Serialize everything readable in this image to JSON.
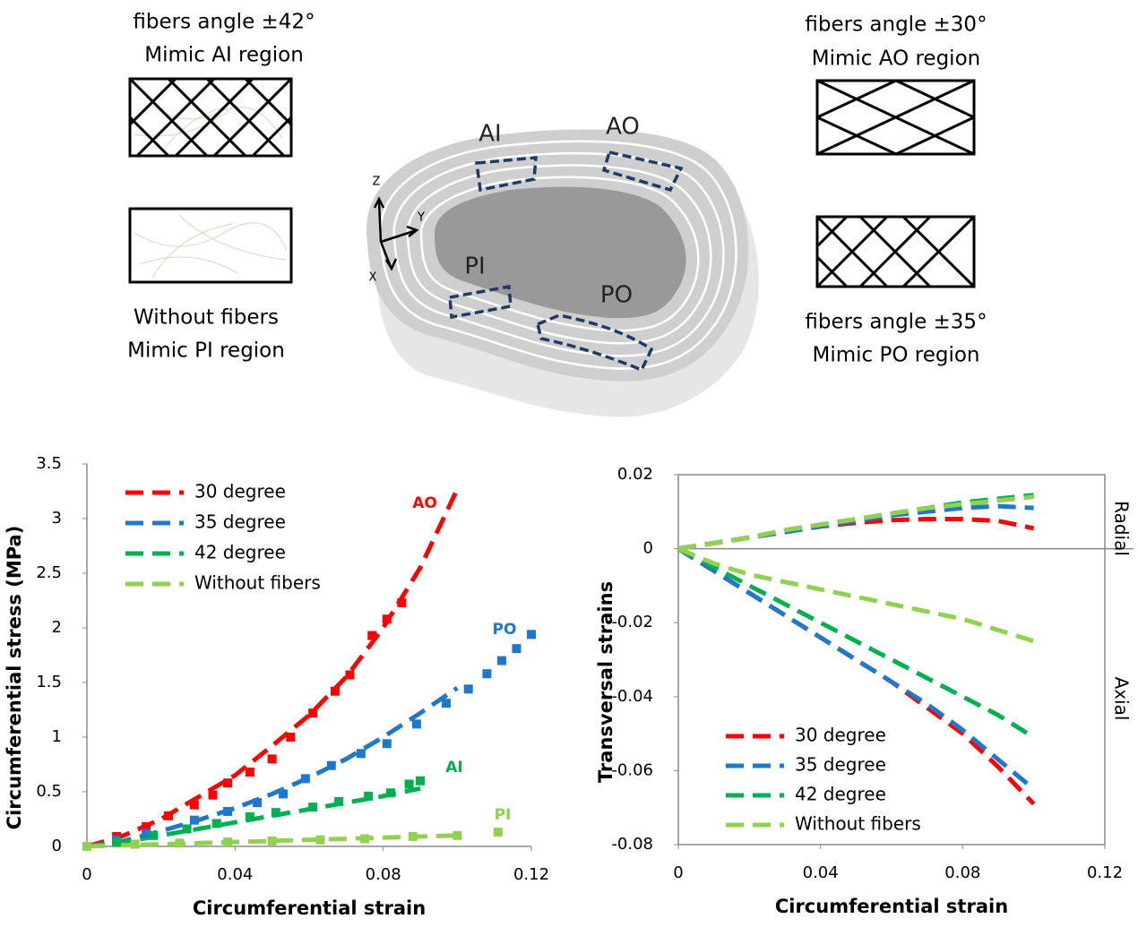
{
  "diagram": {
    "labels": {
      "ai_angle": "fibers angle ±42°",
      "ai_mimic": "Mimic AI region",
      "pi_angle": "Without fibers",
      "pi_mimic": "Mimic  PI region",
      "ao_angle": "fibers angle ±30°",
      "ao_mimic": "Mimic AO region",
      "po_angle": "fibers angle ±35°",
      "po_mimic": "Mimic PO region",
      "ai": "AI",
      "ao": "AO",
      "pi": "PI",
      "po": "PO",
      "z": "Z",
      "y": "Y",
      "x": "X"
    }
  },
  "chart_data": [
    {
      "type": "line",
      "x_label": "Circumferential strain",
      "y_label": "Circumferential stress (MPa)",
      "xlim": [
        0,
        0.12
      ],
      "xticks": [
        0,
        0.04,
        0.08,
        0.12
      ],
      "ylim": [
        0,
        3.5
      ],
      "yticks": [
        0,
        0.5,
        1,
        1.5,
        2,
        2.5,
        3,
        3.5
      ],
      "x": [
        0,
        0.01,
        0.02,
        0.03,
        0.04,
        0.05,
        0.06,
        0.07,
        0.08,
        0.09,
        0.1
      ],
      "series": [
        {
          "name": "30 degree",
          "color": "#ff0000",
          "values": [
            0,
            0.1,
            0.25,
            0.45,
            0.65,
            0.92,
            1.2,
            1.55,
            2.0,
            2.55,
            3.27
          ]
        },
        {
          "name": "35 degree",
          "color": "#1f78cc",
          "values": [
            0,
            0.05,
            0.14,
            0.24,
            0.35,
            0.48,
            0.63,
            0.8,
            1.0,
            1.22,
            1.45
          ]
        },
        {
          "name": "42 degree",
          "color": "#00b050",
          "values": [
            0,
            0.04,
            0.1,
            0.16,
            0.22,
            0.28,
            0.34,
            0.4,
            0.46,
            0.53,
            null
          ]
        },
        {
          "name": "Without fibers",
          "color": "#92d050",
          "values": [
            0,
            0.01,
            0.02,
            0.03,
            0.04,
            0.05,
            0.06,
            0.07,
            0.08,
            0.09,
            0.1
          ]
        }
      ],
      "points": [
        {
          "name": "AO",
          "color": "#ff0000",
          "x": [
            0.008,
            0.016,
            0.022,
            0.029,
            0.034,
            0.038,
            0.044,
            0.05,
            0.055,
            0.061,
            0.067,
            0.071,
            0.077,
            0.081,
            0.085
          ],
          "values": [
            0.09,
            0.18,
            0.28,
            0.38,
            0.47,
            0.58,
            0.68,
            0.8,
            1.0,
            1.22,
            1.42,
            1.57,
            1.93,
            2.08,
            2.23
          ]
        },
        {
          "name": "PO",
          "color": "#1f78cc",
          "x": [
            0.008,
            0.016,
            0.029,
            0.038,
            0.046,
            0.053,
            0.059,
            0.066,
            0.074,
            0.081,
            0.089,
            0.097,
            0.103,
            0.108,
            0.112,
            0.116,
            0.12
          ],
          "values": [
            0.06,
            0.12,
            0.24,
            0.32,
            0.4,
            0.48,
            0.62,
            0.74,
            0.85,
            0.94,
            1.12,
            1.31,
            1.44,
            1.58,
            1.7,
            1.81,
            1.94
          ]
        },
        {
          "name": "AI",
          "color": "#00b050",
          "x": [
            0.008,
            0.018,
            0.027,
            0.035,
            0.044,
            0.051,
            0.061,
            0.068,
            0.076,
            0.082,
            0.087,
            0.09
          ],
          "values": [
            0.04,
            0.1,
            0.16,
            0.21,
            0.27,
            0.31,
            0.36,
            0.41,
            0.46,
            0.49,
            0.57,
            0.6
          ]
        },
        {
          "name": "PI",
          "color": "#92d050",
          "x": [
            0,
            0.013,
            0.025,
            0.038,
            0.05,
            0.063,
            0.075,
            0.088,
            0.1,
            0.111
          ],
          "values": [
            0,
            0.02,
            0.03,
            0.04,
            0.05,
            0.06,
            0.07,
            0.09,
            0.1,
            0.13
          ]
        }
      ]
    },
    {
      "type": "line",
      "x_label": "Circumferential strain",
      "y_label": "Transversal strains",
      "radial_label": "Radial",
      "axial_label": "Axial",
      "xlim": [
        0,
        0.12
      ],
      "xticks": [
        0,
        0.04,
        0.08,
        0.12
      ],
      "ylim": [
        -0.08,
        0.02
      ],
      "yticks": [
        -0.08,
        -0.06,
        -0.04,
        -0.02,
        0,
        0.02
      ],
      "x": [
        0,
        0.01,
        0.02,
        0.03,
        0.04,
        0.05,
        0.06,
        0.07,
        0.08,
        0.09,
        0.1
      ],
      "series": [
        {
          "name": "30 degree",
          "color": "#ff0000",
          "radial": [
            0,
            0.0015,
            0.003,
            0.0045,
            0.006,
            0.007,
            0.0077,
            0.008,
            0.008,
            0.0075,
            0.0055
          ],
          "axial": [
            0,
            -0.006,
            -0.012,
            -0.018,
            -0.024,
            -0.03,
            -0.036,
            -0.043,
            -0.05,
            -0.059,
            -0.069
          ]
        },
        {
          "name": "35 degree",
          "color": "#1f78cc",
          "radial": [
            0,
            0.0015,
            0.003,
            0.0045,
            0.006,
            0.0075,
            0.009,
            0.01,
            0.011,
            0.0115,
            0.011
          ],
          "axial": [
            0,
            -0.006,
            -0.012,
            -0.018,
            -0.024,
            -0.03,
            -0.036,
            -0.042,
            -0.049,
            -0.057,
            -0.065
          ]
        },
        {
          "name": "42 degree",
          "color": "#00b050",
          "radial": [
            0,
            0.0015,
            0.003,
            0.005,
            0.0065,
            0.008,
            0.0095,
            0.011,
            0.0125,
            0.0135,
            0.0145
          ],
          "axial": [
            0,
            -0.005,
            -0.01,
            -0.015,
            -0.02,
            -0.025,
            -0.03,
            -0.035,
            -0.04,
            -0.045,
            -0.051
          ]
        },
        {
          "name": "Without fibers",
          "color": "#92d050",
          "radial": [
            0,
            0.0015,
            0.003,
            0.005,
            0.0065,
            0.008,
            0.0095,
            0.011,
            0.012,
            0.013,
            0.014
          ],
          "axial": [
            0,
            -0.004,
            -0.007,
            -0.009,
            -0.011,
            -0.013,
            -0.015,
            -0.017,
            -0.019,
            -0.022,
            -0.025
          ]
        }
      ]
    }
  ]
}
